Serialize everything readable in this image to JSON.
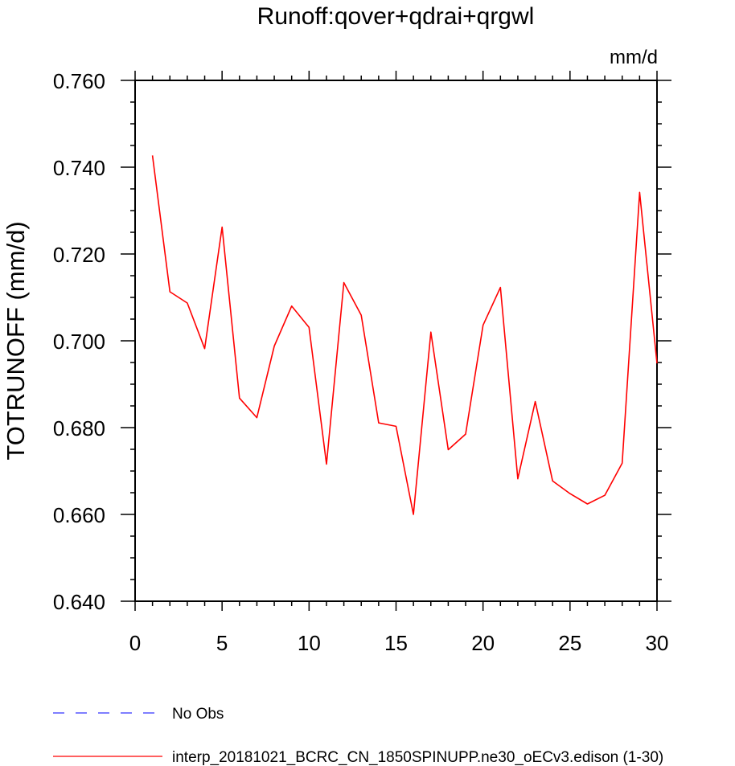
{
  "chart_data": {
    "type": "line",
    "title": "Runoff:qover+qdrai+qrgwl",
    "units": "mm/d",
    "ylabel": "TOTRUNOFF  (mm/d)",
    "xlabel": "",
    "xlim": [
      0,
      30
    ],
    "ylim": [
      0.64,
      0.76
    ],
    "xticks": [
      0,
      5,
      10,
      15,
      20,
      25,
      30
    ],
    "xtick_labels": [
      "0",
      "5",
      "10",
      "15",
      "20",
      "25",
      "30"
    ],
    "yticks": [
      0.64,
      0.66,
      0.68,
      0.7,
      0.72,
      0.74,
      0.76
    ],
    "ytick_labels": [
      "0.640",
      "0.660",
      "0.680",
      "0.700",
      "0.720",
      "0.740",
      "0.760"
    ],
    "grid": false,
    "legend_position": "bottom-left",
    "series": [
      {
        "name": "interp_20181021_BCRC_CN_1850SPINUPP.ne30_oECv3.edison (1-30)",
        "color": "#ff0000",
        "style": "solid",
        "x": [
          1,
          2,
          3,
          4,
          5,
          6,
          7,
          8,
          9,
          10,
          11,
          12,
          13,
          14,
          15,
          16,
          17,
          18,
          19,
          20,
          21,
          22,
          23,
          24,
          25,
          26,
          27,
          28,
          29,
          30
        ],
        "values": [
          0.7427,
          0.7113,
          0.7087,
          0.6982,
          0.7262,
          0.6868,
          0.6823,
          0.6988,
          0.708,
          0.7031,
          0.6716,
          0.7134,
          0.7059,
          0.6811,
          0.6803,
          0.66,
          0.702,
          0.6749,
          0.6785,
          0.7036,
          0.7123,
          0.6682,
          0.686,
          0.6677,
          0.6648,
          0.6624,
          0.6644,
          0.6718,
          0.7342,
          0.6948
        ]
      }
    ],
    "legend": [
      {
        "label": "No Obs",
        "color": "#3333ff",
        "style": "dashed"
      },
      {
        "label": "interp_20181021_BCRC_CN_1850SPINUPP.ne30_oECv3.edison (1-30)",
        "color": "#ff0000",
        "style": "solid"
      }
    ]
  }
}
